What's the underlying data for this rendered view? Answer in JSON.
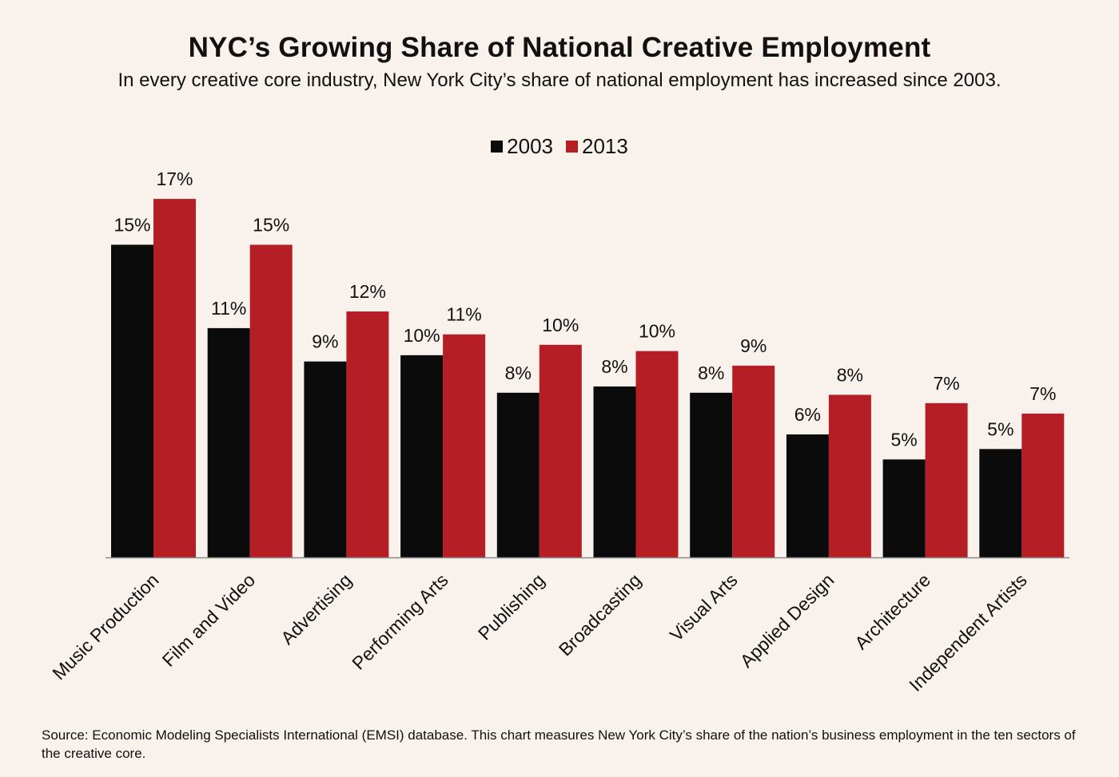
{
  "colors": {
    "background": "#f9f1ec",
    "series_2003": "#0b0b0b",
    "series_2013": "#b41e24",
    "axis": "#8a8a8a"
  },
  "source_text": "Source:  Economic Modeling Specialists International (EMSI) database. This chart measures New York City’s share of the nation’s business employment in the ten sectors of the creative core.",
  "chart_data": {
    "type": "bar",
    "title": "NYC’s Growing Share of National Creative Employment",
    "subtitle": "In every creative core industry, New York City’s share of national employment has increased since 2003.",
    "xlabel": "",
    "ylabel": "",
    "ylim": [
      0,
      18
    ],
    "grid": false,
    "legend_position": "top-center",
    "categories": [
      "Music Production",
      "Film and  Video",
      "Advertising",
      "Performing Arts",
      "Publishing",
      "Broadcasting",
      "Visual  Arts",
      "Applied Design",
      "Architecture",
      "Independent Artists"
    ],
    "series": [
      {
        "name": "2003",
        "values": [
          15.0,
          11.0,
          9.4,
          9.7,
          7.9,
          8.2,
          7.9,
          5.9,
          4.7,
          5.2
        ],
        "labels": [
          "15%",
          "11%",
          "9%",
          "10%",
          "8%",
          "8%",
          "8%",
          "6%",
          "5%",
          "5%"
        ]
      },
      {
        "name": "2013",
        "values": [
          17.2,
          15.0,
          11.8,
          10.7,
          10.2,
          9.9,
          9.2,
          7.8,
          7.4,
          6.9
        ],
        "labels": [
          "17%",
          "15%",
          "12%",
          "11%",
          "10%",
          "10%",
          "9%",
          "8%",
          "7%",
          "7%"
        ]
      }
    ]
  }
}
